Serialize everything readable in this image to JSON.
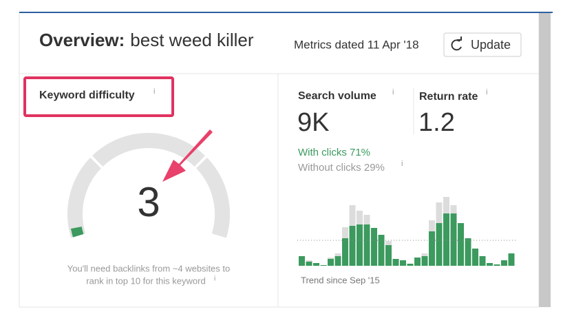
{
  "header": {
    "title_label": "Overview:",
    "keyword": "best weed killer",
    "metrics_date": "Metrics dated 11 Apr '18",
    "update_button": "Update"
  },
  "info_icon": "i",
  "keyword_difficulty": {
    "label": "Keyword difficulty",
    "value": 3,
    "range": [
      0,
      100
    ],
    "note_line1": "You'll need backlinks from ~4 websites to",
    "note_line2": "rank in top 10 for this keyword"
  },
  "search_volume": {
    "label": "Search volume",
    "value": "9K",
    "with_clicks": "With clicks 71%",
    "without_clicks": "Without clicks 29%"
  },
  "return_rate": {
    "label": "Return rate",
    "value": "1.2"
  },
  "trend": {
    "caption": "Trend since Sep '15",
    "average": 37,
    "with_clicks": [
      14,
      6,
      4,
      1,
      10,
      14,
      40,
      58,
      60,
      60,
      55,
      45,
      30,
      10,
      8,
      3,
      12,
      14,
      50,
      62,
      76,
      76,
      62,
      40,
      25,
      14,
      4,
      2,
      8,
      18
    ],
    "without_clicks": [
      0,
      2,
      0,
      0,
      2,
      4,
      16,
      30,
      20,
      14,
      0,
      0,
      6,
      0,
      0,
      0,
      0,
      4,
      16,
      30,
      24,
      12,
      0,
      0,
      0,
      0,
      0,
      0,
      0,
      0
    ]
  }
}
